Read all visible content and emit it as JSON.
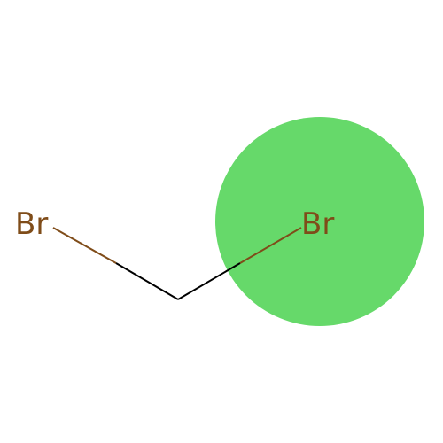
{
  "molecule": {
    "atoms": [
      {
        "symbol": "Br",
        "highlighted": false
      },
      {
        "symbol": "Br",
        "highlighted": true
      }
    ],
    "bonds": [
      {
        "from": "Br",
        "to": "C"
      },
      {
        "from": "C",
        "to": "C"
      },
      {
        "from": "C",
        "to": "Br"
      }
    ]
  },
  "colors": {
    "bromine": "#7f4c19",
    "carbon_bond": "#000000",
    "highlight": "#66d96a",
    "background": "#ffffff"
  }
}
